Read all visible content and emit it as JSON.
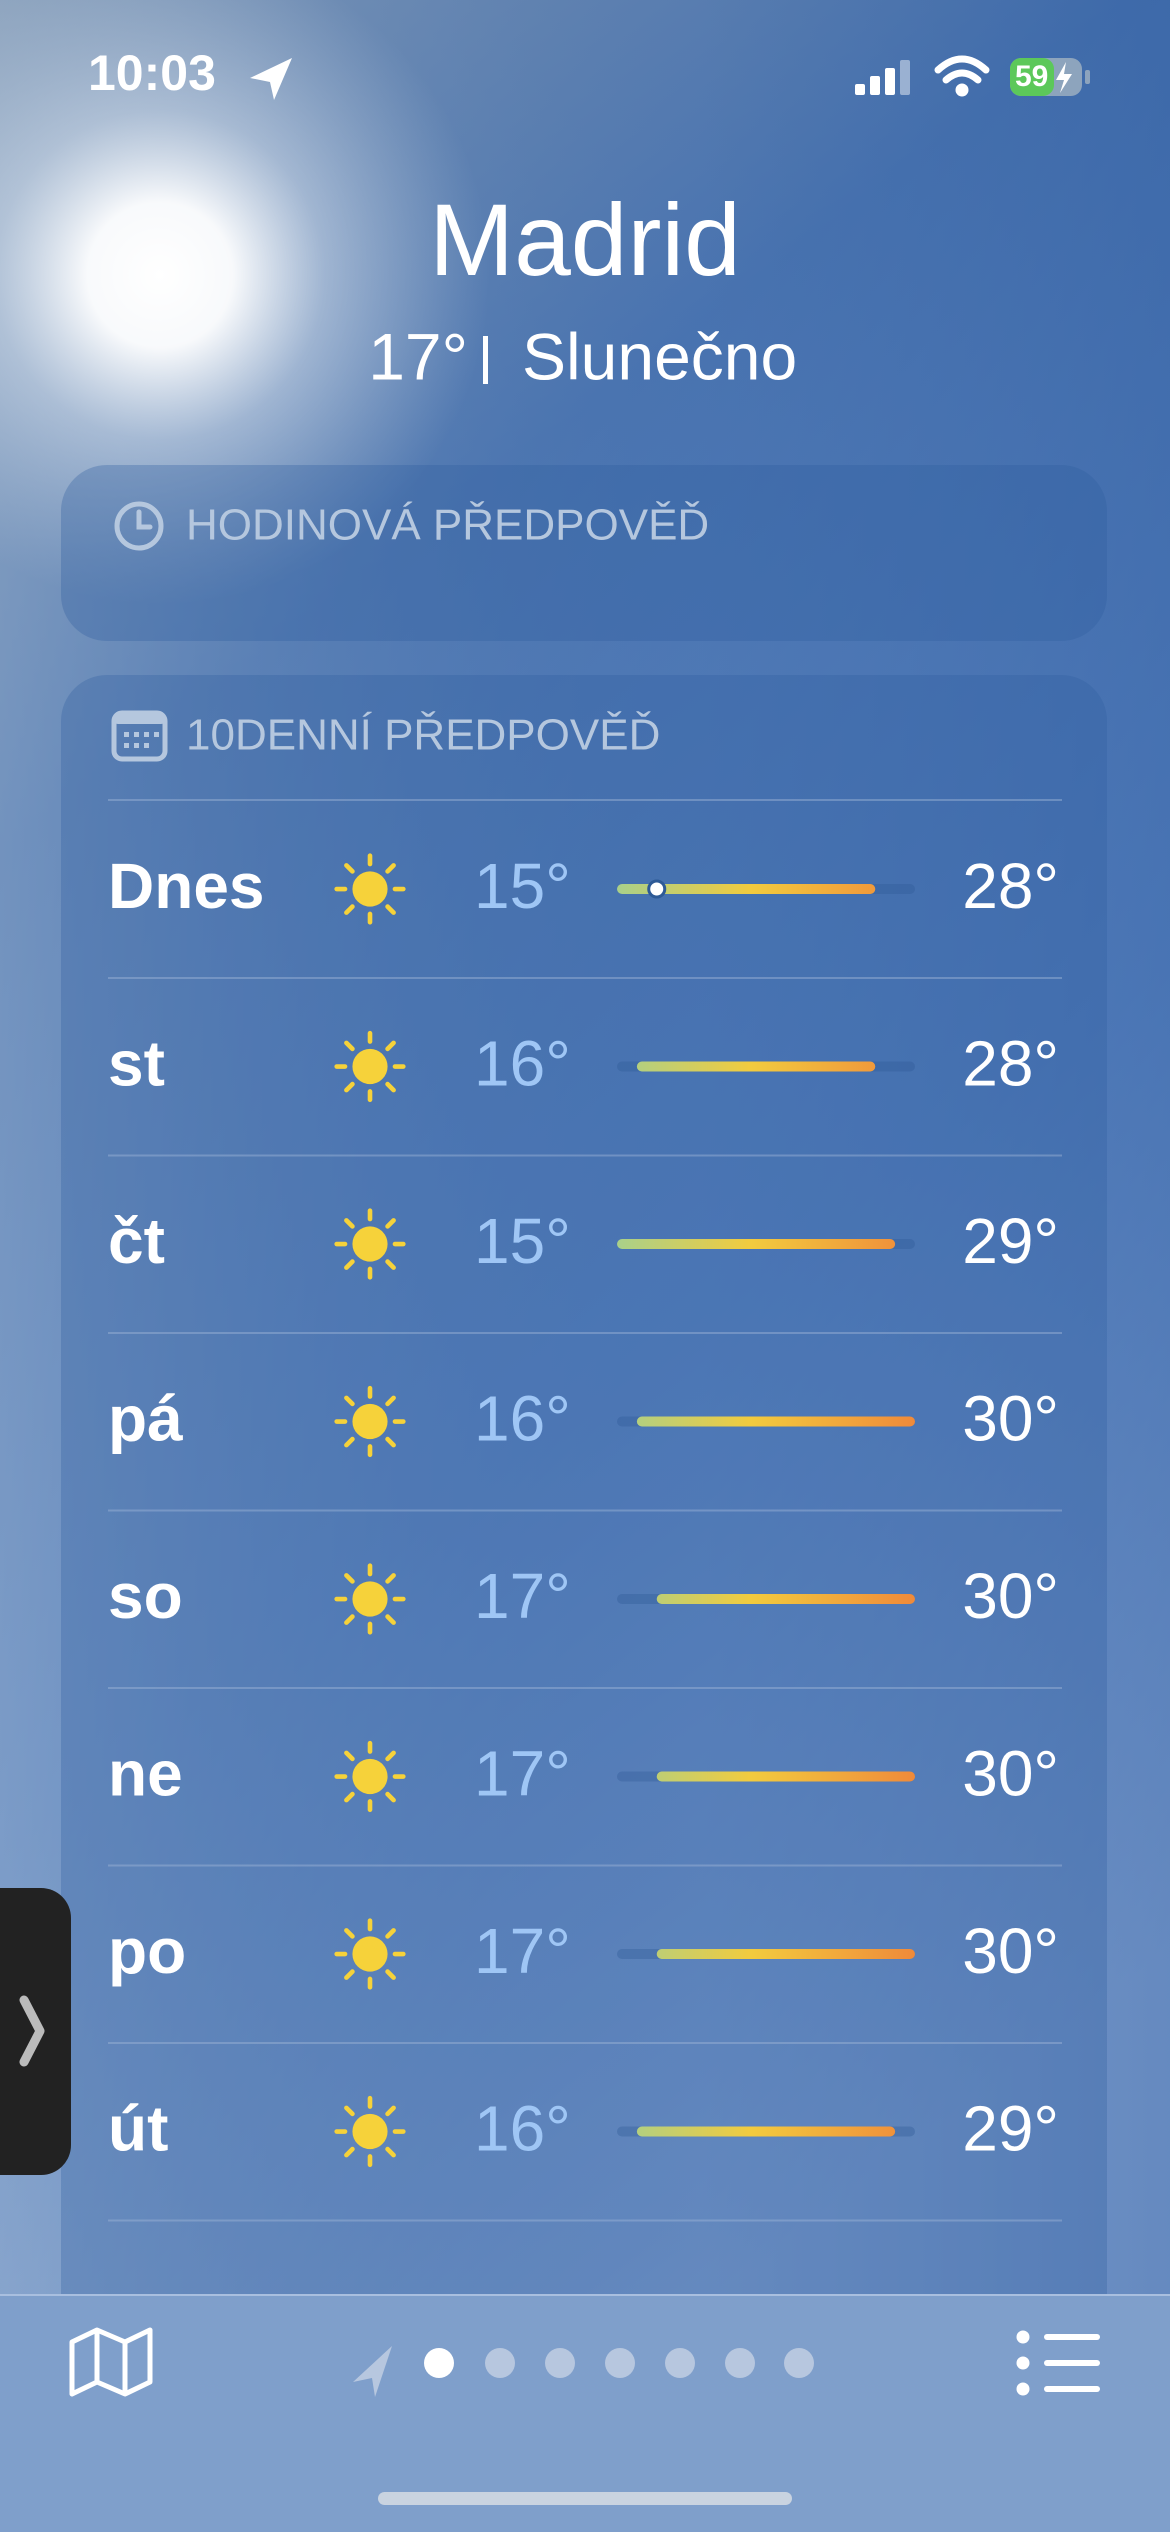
{
  "status_bar": {
    "time": "10:03",
    "battery": "59"
  },
  "location": {
    "city": "Madrid",
    "temperature": "17°",
    "condition": "Slunečno"
  },
  "hourly_forecast": {
    "title": "HODINOVÁ PŘEDPOVĚĎ"
  },
  "daily_forecast": {
    "title": "10DENNÍ PŘEDPOVĚĎ",
    "rows": [
      {
        "day": "Dnes",
        "low": "15°",
        "high": "28°"
      },
      {
        "day": "st",
        "low": "16°",
        "high": "28°"
      },
      {
        "day": "čt",
        "low": "15°",
        "high": "29°"
      },
      {
        "day": "pá",
        "low": "16°",
        "high": "30°"
      },
      {
        "day": "so",
        "low": "17°",
        "high": "30°"
      },
      {
        "day": "ne",
        "low": "17°",
        "high": "30°"
      },
      {
        "day": "po",
        "low": "17°",
        "high": "30°"
      },
      {
        "day": "út",
        "low": "16°",
        "high": "29°"
      }
    ]
  }
}
